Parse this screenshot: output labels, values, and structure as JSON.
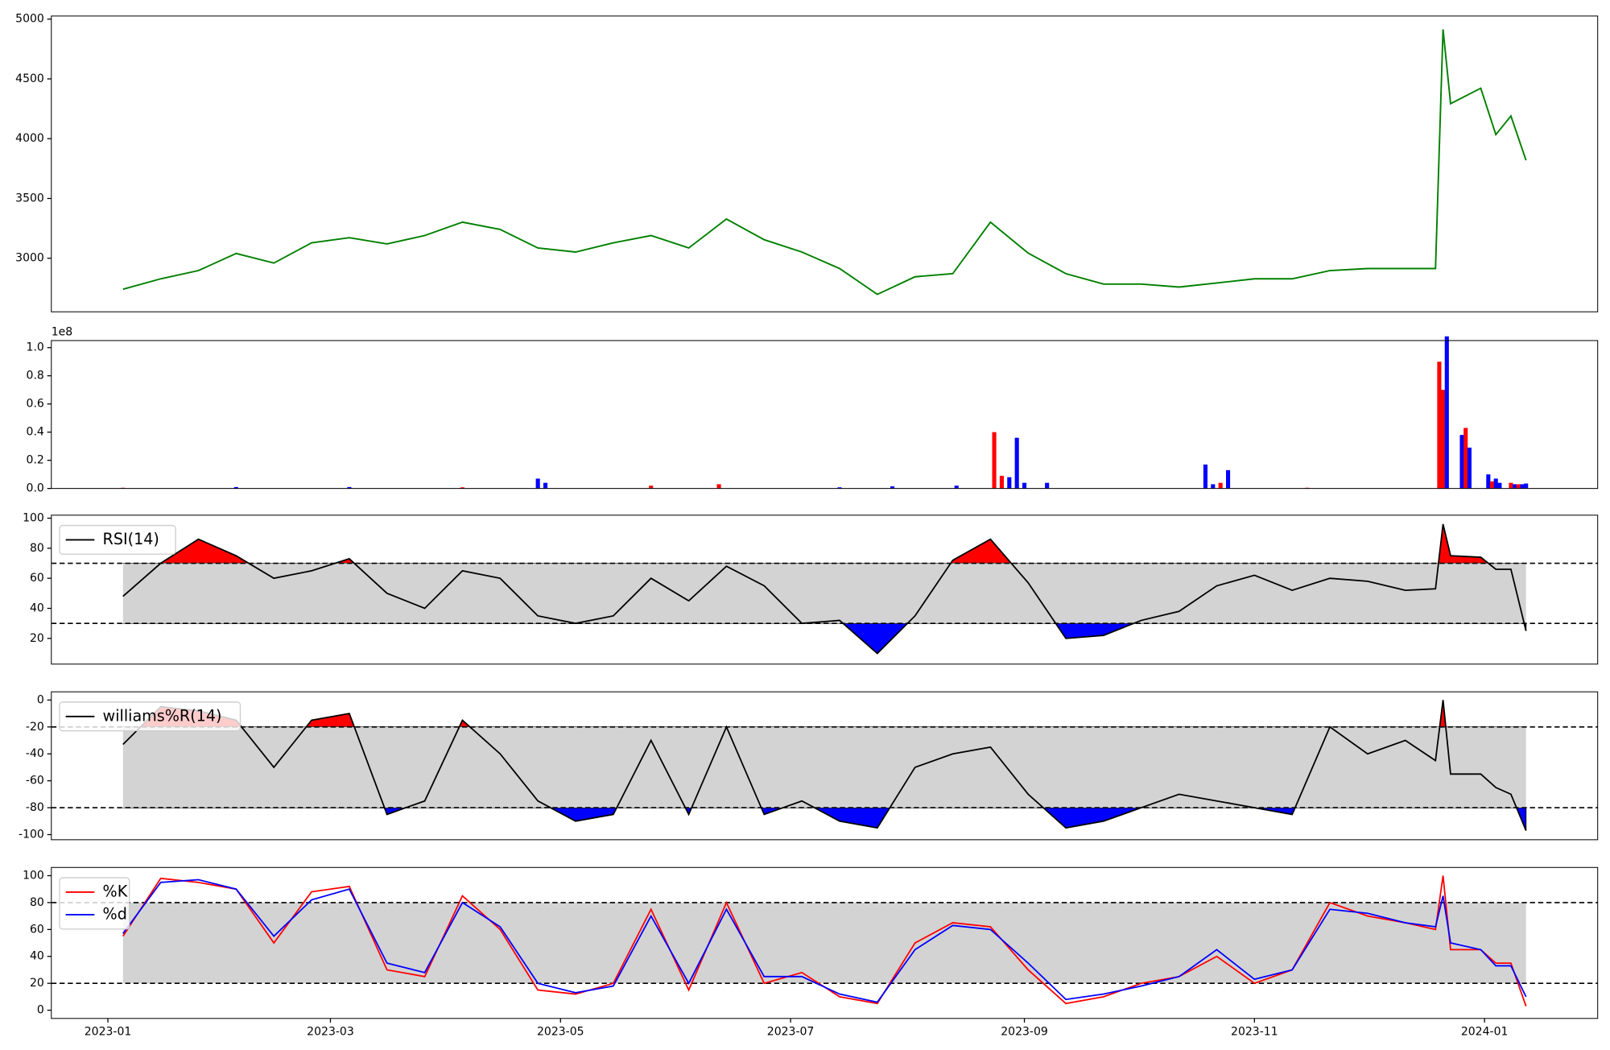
{
  "chart_data": [
    {
      "type": "line",
      "color": "green",
      "x": [
        "2023-01-05",
        "2023-01-15",
        "2023-01-25",
        "2023-02-04",
        "2023-02-14",
        "2023-02-24",
        "2023-03-06",
        "2023-03-16",
        "2023-03-26",
        "2023-04-05",
        "2023-04-15",
        "2023-04-25",
        "2023-05-05",
        "2023-05-15",
        "2023-05-25",
        "2023-06-04",
        "2023-06-14",
        "2023-06-24",
        "2023-07-04",
        "2023-07-14",
        "2023-07-24",
        "2023-08-03",
        "2023-08-13",
        "2023-08-23",
        "2023-09-02",
        "2023-09-12",
        "2023-09-22",
        "2023-10-02",
        "2023-10-12",
        "2023-10-22",
        "2023-11-01",
        "2023-11-11",
        "2023-11-21",
        "2023-12-01",
        "2023-12-11",
        "2023-12-19",
        "2023-12-21",
        "2023-12-23",
        "2023-12-31",
        "2024-01-04",
        "2024-01-08",
        "2024-01-12"
      ],
      "values": [
        2741,
        2828,
        2897,
        3040,
        2960,
        3129,
        3172,
        3120,
        3190,
        3302,
        3241,
        3086,
        3052,
        3129,
        3190,
        3086,
        3328,
        3155,
        3052,
        2914,
        2698,
        2845,
        2871,
        3302,
        3043,
        2871,
        2784,
        2784,
        2759,
        2793,
        2828,
        2828,
        2897,
        2914,
        2914,
        2914,
        4914,
        4293,
        4422,
        4034,
        4190,
        3819
      ],
      "xlim": [
        "2022-12-17",
        "2024-01-31"
      ],
      "ylim": [
        2552,
        5026
      ],
      "yticks": [
        3000,
        3500,
        4000,
        4500,
        5000
      ]
    },
    {
      "type": "bar",
      "offset_label": "1e8",
      "x": [
        "2023-01-05",
        "2023-02-04",
        "2023-03-06",
        "2023-04-05",
        "2023-04-25",
        "2023-04-27",
        "2023-05-25",
        "2023-06-12",
        "2023-07-14",
        "2023-07-28",
        "2023-08-14",
        "2023-08-24",
        "2023-08-26",
        "2023-08-28",
        "2023-08-30",
        "2023-09-01",
        "2023-09-07",
        "2023-10-19",
        "2023-10-21",
        "2023-10-23",
        "2023-10-25",
        "2023-11-15",
        "2023-12-20",
        "2023-12-21",
        "2023-12-22",
        "2023-12-26",
        "2023-12-27",
        "2023-12-28",
        "2024-01-02",
        "2024-01-03",
        "2024-01-04",
        "2024-01-05",
        "2024-01-08",
        "2024-01-09",
        "2024-01-10",
        "2024-01-11",
        "2024-01-12"
      ],
      "values": [
        0.005,
        0.01,
        0.01,
        0.008,
        0.07,
        0.04,
        0.02,
        0.03,
        0.008,
        0.015,
        0.02,
        0.4,
        0.09,
        0.08,
        0.36,
        0.04,
        0.04,
        0.17,
        0.03,
        0.04,
        0.13,
        0.005,
        0.9,
        0.7,
        1.08,
        0.38,
        0.43,
        0.29,
        0.1,
        0.05,
        0.07,
        0.04,
        0.04,
        0.03,
        0.03,
        0.03,
        0.035
      ],
      "colors": [
        "red",
        "blue",
        "blue",
        "red",
        "blue",
        "blue",
        "red",
        "red",
        "blue",
        "blue",
        "blue",
        "red",
        "red",
        "blue",
        "blue",
        "blue",
        "blue",
        "blue",
        "blue",
        "red",
        "blue",
        "red",
        "red",
        "red",
        "blue",
        "blue",
        "red",
        "blue",
        "blue",
        "red",
        "blue",
        "blue",
        "red",
        "blue",
        "red",
        "blue",
        "blue"
      ],
      "xlim": [
        "2022-12-17",
        "2024-01-31"
      ],
      "ylim": [
        0,
        1.05
      ],
      "yticks": [
        {
          "value": 0,
          "label": "0.0"
        },
        0.2,
        0.4,
        0.6,
        0.8,
        {
          "value": 1,
          "label": "1.0"
        }
      ]
    },
    {
      "type": "oscillator",
      "legend": "upper left",
      "thresholds": [
        30,
        70
      ],
      "band_color": "lightgray",
      "upper_color": "red",
      "lower_color": "blue",
      "x": [
        "2023-01-05",
        "2023-01-15",
        "2023-01-25",
        "2023-02-04",
        "2023-02-14",
        "2023-02-24",
        "2023-03-06",
        "2023-03-16",
        "2023-03-26",
        "2023-04-05",
        "2023-04-15",
        "2023-04-25",
        "2023-05-05",
        "2023-05-15",
        "2023-05-25",
        "2023-06-04",
        "2023-06-14",
        "2023-06-24",
        "2023-07-04",
        "2023-07-14",
        "2023-07-24",
        "2023-08-03",
        "2023-08-13",
        "2023-08-23",
        "2023-09-02",
        "2023-09-12",
        "2023-09-22",
        "2023-10-02",
        "2023-10-12",
        "2023-10-22",
        "2023-11-01",
        "2023-11-11",
        "2023-11-21",
        "2023-12-01",
        "2023-12-11",
        "2023-12-19",
        "2023-12-21",
        "2023-12-23",
        "2023-12-31",
        "2024-01-04",
        "2024-01-08",
        "2024-01-12"
      ],
      "series": [
        {
          "name": "RSI(14)",
          "color": "black",
          "values": [
            48,
            70,
            86,
            75,
            60,
            65,
            73,
            50,
            40,
            65,
            60,
            35,
            30,
            35,
            60,
            45,
            68,
            55,
            30,
            32,
            10,
            35,
            72,
            86,
            57,
            20,
            22,
            32,
            38,
            55,
            62,
            52,
            60,
            58,
            52,
            53,
            96,
            75,
            74,
            66,
            66,
            25
          ]
        }
      ],
      "xlim": [
        "2022-12-17",
        "2024-01-31"
      ],
      "ylim": [
        2.9,
        102
      ],
      "yticks": [
        20,
        40,
        60,
        80,
        100
      ]
    },
    {
      "type": "oscillator",
      "legend": "upper left",
      "thresholds": [
        -80,
        -20
      ],
      "band_color": "lightgray",
      "upper_color": "red",
      "lower_color": "blue",
      "x": [
        "2023-01-05",
        "2023-01-15",
        "2023-01-25",
        "2023-02-04",
        "2023-02-14",
        "2023-02-24",
        "2023-03-06",
        "2023-03-16",
        "2023-03-26",
        "2023-04-05",
        "2023-04-15",
        "2023-04-25",
        "2023-05-05",
        "2023-05-15",
        "2023-05-25",
        "2023-06-04",
        "2023-06-14",
        "2023-06-24",
        "2023-07-04",
        "2023-07-14",
        "2023-07-24",
        "2023-08-03",
        "2023-08-13",
        "2023-08-23",
        "2023-09-02",
        "2023-09-12",
        "2023-09-22",
        "2023-10-02",
        "2023-10-12",
        "2023-10-22",
        "2023-11-01",
        "2023-11-11",
        "2023-11-21",
        "2023-12-01",
        "2023-12-11",
        "2023-12-19",
        "2023-12-21",
        "2023-12-23",
        "2023-12-31",
        "2024-01-04",
        "2024-01-08",
        "2024-01-12"
      ],
      "series": [
        {
          "name": "williams%R(14)",
          "color": "black",
          "values": [
            -33,
            -5,
            -8,
            -15,
            -50,
            -15,
            -10,
            -85,
            -75,
            -15,
            -40,
            -75,
            -90,
            -85,
            -30,
            -85,
            -20,
            -85,
            -75,
            -90,
            -95,
            -50,
            -40,
            -35,
            -70,
            -95,
            -90,
            -80,
            -70,
            -75,
            -80,
            -85,
            -20,
            -40,
            -30,
            -45,
            0,
            -55,
            -55,
            -65,
            -70,
            -97
          ]
        }
      ],
      "xlim": [
        "2022-12-17",
        "2024-01-31"
      ],
      "ylim": [
        -103.8,
        6.1
      ],
      "yticks": [
        -100,
        -80,
        -60,
        -40,
        -20,
        0
      ]
    },
    {
      "type": "oscillator",
      "legend": "upper left",
      "thresholds": [
        20,
        80
      ],
      "band_color": "lightgray",
      "x": [
        "2023-01-05",
        "2023-01-15",
        "2023-01-25",
        "2023-02-04",
        "2023-02-14",
        "2023-02-24",
        "2023-03-06",
        "2023-03-16",
        "2023-03-26",
        "2023-04-05",
        "2023-04-15",
        "2023-04-25",
        "2023-05-05",
        "2023-05-15",
        "2023-05-25",
        "2023-06-04",
        "2023-06-14",
        "2023-06-24",
        "2023-07-04",
        "2023-07-14",
        "2023-07-24",
        "2023-08-03",
        "2023-08-13",
        "2023-08-23",
        "2023-09-02",
        "2023-09-12",
        "2023-09-22",
        "2023-10-02",
        "2023-10-12",
        "2023-10-22",
        "2023-11-01",
        "2023-11-11",
        "2023-11-21",
        "2023-12-01",
        "2023-12-11",
        "2023-12-19",
        "2023-12-21",
        "2023-12-23",
        "2023-12-31",
        "2024-01-04",
        "2024-01-08",
        "2024-01-12"
      ],
      "series": [
        {
          "name": "%K",
          "color": "red",
          "values": [
            55,
            98,
            95,
            90,
            50,
            88,
            92,
            30,
            25,
            85,
            60,
            15,
            12,
            20,
            75,
            15,
            80,
            20,
            28,
            10,
            5,
            50,
            65,
            62,
            30,
            5,
            10,
            20,
            25,
            40,
            20,
            30,
            80,
            70,
            65,
            60,
            100,
            45,
            45,
            35,
            35,
            3
          ]
        },
        {
          "name": "%d",
          "color": "blue",
          "values": [
            57,
            95,
            97,
            90,
            55,
            82,
            90,
            35,
            28,
            80,
            62,
            20,
            13,
            18,
            70,
            20,
            75,
            25,
            25,
            12,
            6,
            45,
            63,
            60,
            35,
            8,
            12,
            18,
            25,
            45,
            23,
            30,
            75,
            72,
            65,
            62,
            85,
            50,
            45,
            33,
            33,
            10
          ]
        }
      ],
      "xlim": [
        "2022-12-17",
        "2024-01-31"
      ],
      "ylim": [
        -6.1,
        106.1
      ],
      "yticks": [
        0,
        20,
        40,
        60,
        80,
        100
      ],
      "xticks": [
        {
          "value": "2023-01-01",
          "label": "2023-01"
        },
        {
          "value": "2023-03-01",
          "label": "2023-03"
        },
        {
          "value": "2023-05-01",
          "label": "2023-05"
        },
        {
          "value": "2023-07-01",
          "label": "2023-07"
        },
        {
          "value": "2023-09-01",
          "label": "2023-09"
        },
        {
          "value": "2023-11-01",
          "label": "2023-11"
        },
        {
          "value": "2024-01-01",
          "label": "2024-01"
        }
      ]
    }
  ]
}
